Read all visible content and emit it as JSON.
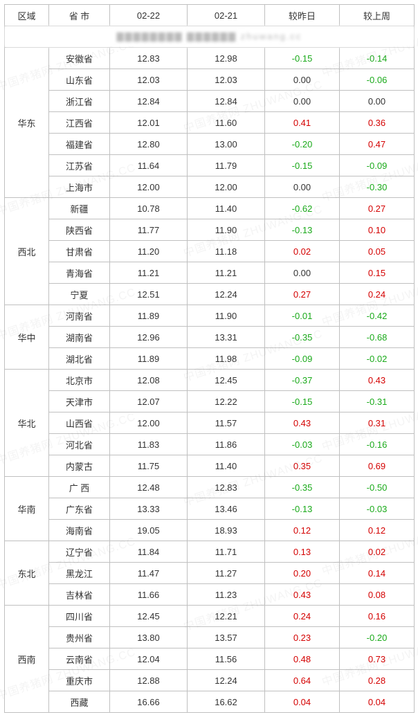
{
  "columns": {
    "region": "区域",
    "province": "省 市",
    "date1": "02-22",
    "date2": "02-21",
    "vs_yesterday": "较昨日",
    "vs_lastweek": "较上周"
  },
  "title_blur_text": "▇▇▇▇▇▇▇▇  ▇▇▇▇▇▇  zhuwang.cc",
  "watermark_text": "中国养猪网 ZHUWANG.CC",
  "colors": {
    "positive": "#d40000",
    "negative": "#1aaa1a",
    "zero": "#333333",
    "border": "#c0c0c0",
    "background": "#ffffff",
    "text": "#333333"
  },
  "groups": [
    {
      "region": "华东",
      "rows": [
        {
          "prov": "安徽省",
          "d1": "12.83",
          "d2": "12.98",
          "c1": "-0.15",
          "c2": "-0.14"
        },
        {
          "prov": "山东省",
          "d1": "12.03",
          "d2": "12.03",
          "c1": "0.00",
          "c2": "-0.06"
        },
        {
          "prov": "浙江省",
          "d1": "12.84",
          "d2": "12.84",
          "c1": "0.00",
          "c2": "0.00"
        },
        {
          "prov": "江西省",
          "d1": "12.01",
          "d2": "11.60",
          "c1": "0.41",
          "c2": "0.36"
        },
        {
          "prov": "福建省",
          "d1": "12.80",
          "d2": "13.00",
          "c1": "-0.20",
          "c2": "0.47"
        },
        {
          "prov": "江苏省",
          "d1": "11.64",
          "d2": "11.79",
          "c1": "-0.15",
          "c2": "-0.09"
        },
        {
          "prov": "上海市",
          "d1": "12.00",
          "d2": "12.00",
          "c1": "0.00",
          "c2": "-0.30"
        }
      ]
    },
    {
      "region": "西北",
      "rows": [
        {
          "prov": "新疆",
          "d1": "10.78",
          "d2": "11.40",
          "c1": "-0.62",
          "c2": "0.27"
        },
        {
          "prov": "陕西省",
          "d1": "11.77",
          "d2": "11.90",
          "c1": "-0.13",
          "c2": "0.10"
        },
        {
          "prov": "甘肃省",
          "d1": "11.20",
          "d2": "11.18",
          "c1": "0.02",
          "c2": "0.05"
        },
        {
          "prov": "青海省",
          "d1": "11.21",
          "d2": "11.21",
          "c1": "0.00",
          "c2": "0.15"
        },
        {
          "prov": "宁夏",
          "d1": "12.51",
          "d2": "12.24",
          "c1": "0.27",
          "c2": "0.24"
        }
      ]
    },
    {
      "region": "华中",
      "rows": [
        {
          "prov": "河南省",
          "d1": "11.89",
          "d2": "11.90",
          "c1": "-0.01",
          "c2": "-0.42"
        },
        {
          "prov": "湖南省",
          "d1": "12.96",
          "d2": "13.31",
          "c1": "-0.35",
          "c2": "-0.68"
        },
        {
          "prov": "湖北省",
          "d1": "11.89",
          "d2": "11.98",
          "c1": "-0.09",
          "c2": "-0.02"
        }
      ]
    },
    {
      "region": "华北",
      "rows": [
        {
          "prov": "北京市",
          "d1": "12.08",
          "d2": "12.45",
          "c1": "-0.37",
          "c2": "0.43"
        },
        {
          "prov": "天津市",
          "d1": "12.07",
          "d2": "12.22",
          "c1": "-0.15",
          "c2": "-0.31"
        },
        {
          "prov": "山西省",
          "d1": "12.00",
          "d2": "11.57",
          "c1": "0.43",
          "c2": "0.31"
        },
        {
          "prov": "河北省",
          "d1": "11.83",
          "d2": "11.86",
          "c1": "-0.03",
          "c2": "-0.16"
        },
        {
          "prov": "内蒙古",
          "d1": "11.75",
          "d2": "11.40",
          "c1": "0.35",
          "c2": "0.69"
        }
      ]
    },
    {
      "region": "华南",
      "rows": [
        {
          "prov": "广 西",
          "d1": "12.48",
          "d2": "12.83",
          "c1": "-0.35",
          "c2": "-0.50"
        },
        {
          "prov": "广东省",
          "d1": "13.33",
          "d2": "13.46",
          "c1": "-0.13",
          "c2": "-0.03"
        },
        {
          "prov": "海南省",
          "d1": "19.05",
          "d2": "18.93",
          "c1": "0.12",
          "c2": "0.12"
        }
      ]
    },
    {
      "region": "东北",
      "rows": [
        {
          "prov": "辽宁省",
          "d1": "11.84",
          "d2": "11.71",
          "c1": "0.13",
          "c2": "0.02"
        },
        {
          "prov": "黑龙江",
          "d1": "11.47",
          "d2": "11.27",
          "c1": "0.20",
          "c2": "0.14"
        },
        {
          "prov": "吉林省",
          "d1": "11.66",
          "d2": "11.23",
          "c1": "0.43",
          "c2": "0.08"
        }
      ]
    },
    {
      "region": "西南",
      "rows": [
        {
          "prov": "四川省",
          "d1": "12.45",
          "d2": "12.21",
          "c1": "0.24",
          "c2": "0.16"
        },
        {
          "prov": "贵州省",
          "d1": "13.80",
          "d2": "13.57",
          "c1": "0.23",
          "c2": "-0.20"
        },
        {
          "prov": "云南省",
          "d1": "12.04",
          "d2": "11.56",
          "c1": "0.48",
          "c2": "0.73"
        },
        {
          "prov": "重庆市",
          "d1": "12.88",
          "d2": "12.24",
          "c1": "0.64",
          "c2": "0.28"
        },
        {
          "prov": "西藏",
          "d1": "16.66",
          "d2": "16.62",
          "c1": "0.04",
          "c2": "0.04"
        }
      ]
    }
  ]
}
